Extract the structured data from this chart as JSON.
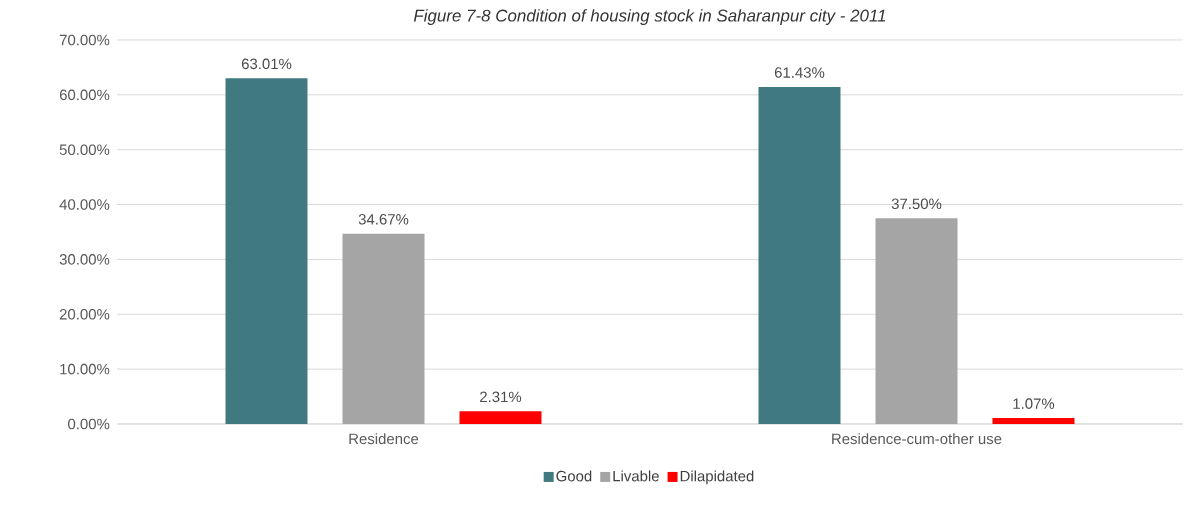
{
  "chart_data": {
    "type": "bar",
    "title": "Figure 7-8 Condition of housing stock in Saharanpur city - 2011",
    "categories": [
      "Residence",
      "Residence-cum-other use"
    ],
    "series": [
      {
        "name": "Good",
        "color": "#407a80",
        "values": [
          63.01,
          61.43
        ],
        "value_labels": [
          "63.01%",
          "61.43%"
        ]
      },
      {
        "name": "Livable",
        "color": "#a5a5a5",
        "values": [
          34.67,
          37.5
        ],
        "value_labels": [
          "34.67%",
          "37.50%"
        ]
      },
      {
        "name": "Dilapidated",
        "color": "#ff0000",
        "values": [
          2.31,
          1.07
        ],
        "value_labels": [
          "2.31%",
          "1.07%"
        ]
      }
    ],
    "ylim": [
      0,
      70
    ],
    "yticks": [
      {
        "value": 0,
        "label": "0.00%"
      },
      {
        "value": 10,
        "label": "10.00%"
      },
      {
        "value": 20,
        "label": "20.00%"
      },
      {
        "value": 30,
        "label": "30.00%"
      },
      {
        "value": 40,
        "label": "40.00%"
      },
      {
        "value": 50,
        "label": "50.00%"
      },
      {
        "value": 60,
        "label": "60.00%"
      },
      {
        "value": 70,
        "label": "70.00%"
      }
    ],
    "grid": "y",
    "legend": "bottom"
  }
}
